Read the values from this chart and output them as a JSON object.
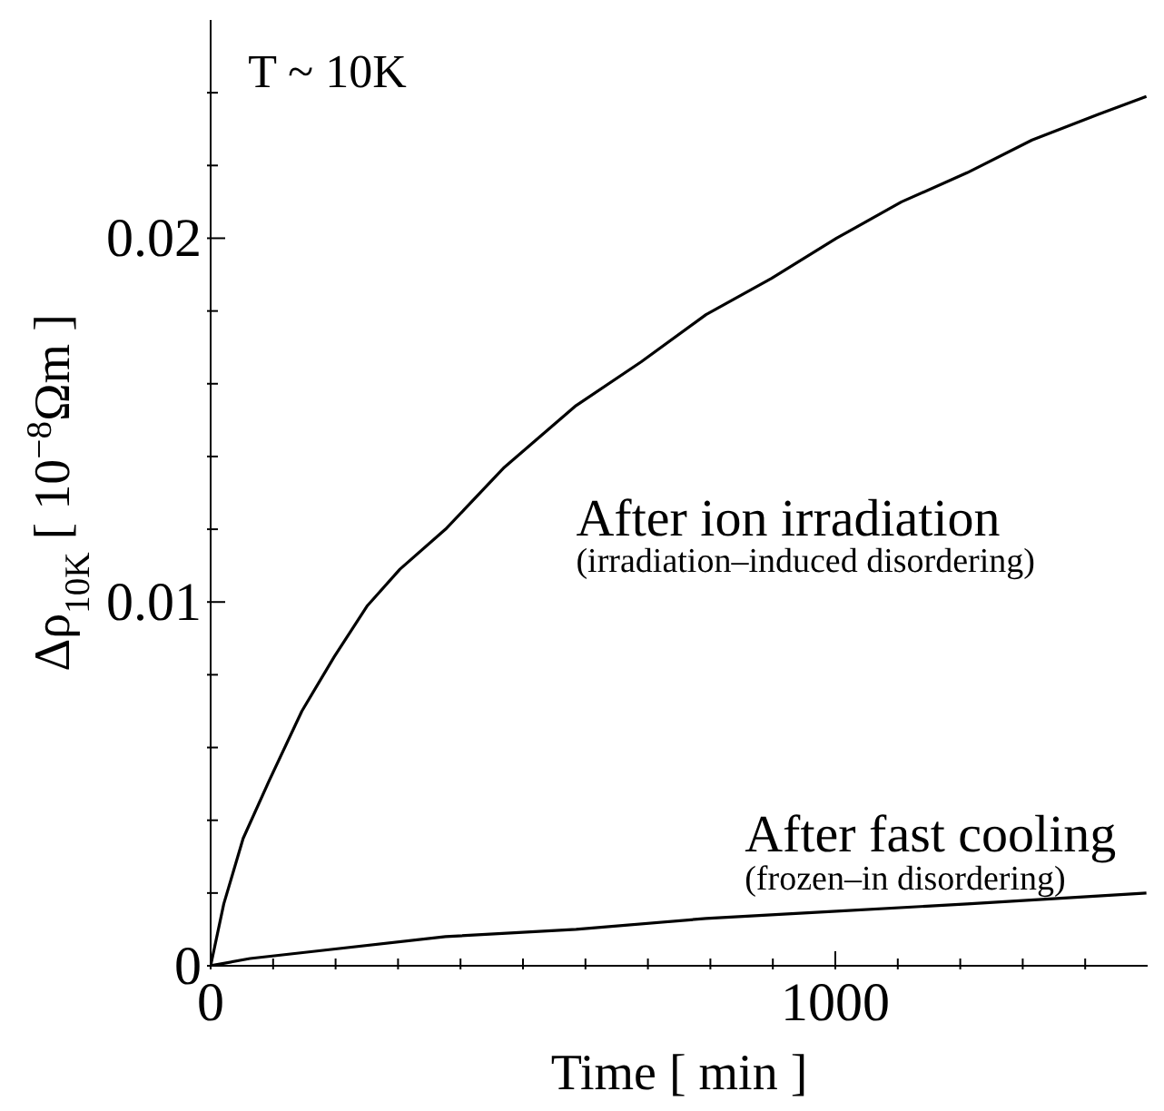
{
  "chart_data": {
    "type": "line",
    "xlabel": "Time [ min ]",
    "ylabel": "Δρ$_{10K}$ [ 10$^{−8}$Ωm ]",
    "annotations": [
      "T ~ 10K",
      "(irradiation–induced disordering)",
      "(frozen–in disordering)"
    ],
    "xlim": [
      0,
      1500
    ],
    "ylim": [
      0,
      0.026
    ],
    "xticks": [
      0,
      {
        "value": 100,
        "label": null
      },
      {
        "value": 200,
        "label": null
      },
      {
        "value": 300,
        "label": null
      },
      {
        "value": 400,
        "label": null
      },
      {
        "value": 500,
        "label": null
      },
      {
        "value": 600,
        "label": null
      },
      {
        "value": 700,
        "label": null
      },
      {
        "value": 800,
        "label": null
      },
      {
        "value": 900,
        "label": null
      },
      1000,
      {
        "value": 1100,
        "label": null
      },
      {
        "value": 1200,
        "label": null
      },
      {
        "value": 1300,
        "label": null
      },
      {
        "value": 1400,
        "label": null
      }
    ],
    "yticks": [
      0,
      {
        "value": 0.002,
        "label": null
      },
      {
        "value": 0.004,
        "label": null
      },
      {
        "value": 0.006,
        "label": null
      },
      {
        "value": 0.008,
        "label": null
      },
      0.01,
      {
        "value": 0.012,
        "label": null
      },
      {
        "value": 0.014,
        "label": null
      },
      {
        "value": 0.016,
        "label": null
      },
      {
        "value": 0.018,
        "label": null
      },
      0.02,
      {
        "value": 0.022,
        "label": null
      },
      {
        "value": 0.024,
        "label": null
      }
    ],
    "grid": false,
    "legend": false,
    "marker": "none",
    "line_style": "solid",
    "series": [
      {
        "name": "After ion irradiation",
        "color": "#000000",
        "x": [
          0,
          21,
          52,
          94,
          146,
          198,
          251,
          303,
          376,
          470,
          585,
          689,
          793,
          898,
          1002,
          1106,
          1211,
          1315,
          1420,
          1498
        ],
        "values": [
          0,
          0.0017,
          0.0035,
          0.0051,
          0.007,
          0.0085,
          0.0099,
          0.0109,
          0.012,
          0.0137,
          0.0154,
          0.0166,
          0.0179,
          0.0189,
          0.02,
          0.021,
          0.0218,
          0.0227,
          0.0234,
          0.0239
        ]
      },
      {
        "name": "After fast cooling",
        "color": "#000000",
        "x": [
          0,
          63,
          167,
          376,
          585,
          793,
          1002,
          1211,
          1498
        ],
        "values": [
          0,
          0.0002,
          0.0004,
          0.0008,
          0.001,
          0.0013,
          0.0015,
          0.0017,
          0.002
        ]
      }
    ]
  }
}
